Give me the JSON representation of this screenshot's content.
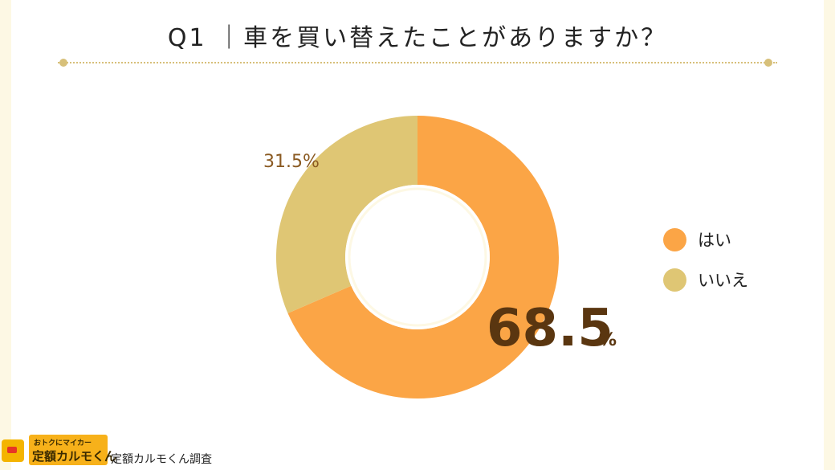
{
  "header": {
    "title": "Q1 ｜車を買い替えたことがありますか？"
  },
  "colors": {
    "yes": "#fba546",
    "no": "#dfc674",
    "label_small": "#8a5a22",
    "label_big": "#5a3610",
    "ring": "#fdf8e4"
  },
  "chart_data": {
    "type": "pie",
    "variant": "donut",
    "slices": [
      {
        "label": "はい",
        "value": 68.5,
        "display": "68.5",
        "unit": "%"
      },
      {
        "label": "いいえ",
        "value": 31.5,
        "display": "31.5%",
        "unit": ""
      }
    ],
    "legend_position": "right"
  },
  "footer": {
    "logo_top": "おトクにマイカー",
    "logo_bottom": "定額カルモくん",
    "source": "定額カルモくん調査"
  }
}
